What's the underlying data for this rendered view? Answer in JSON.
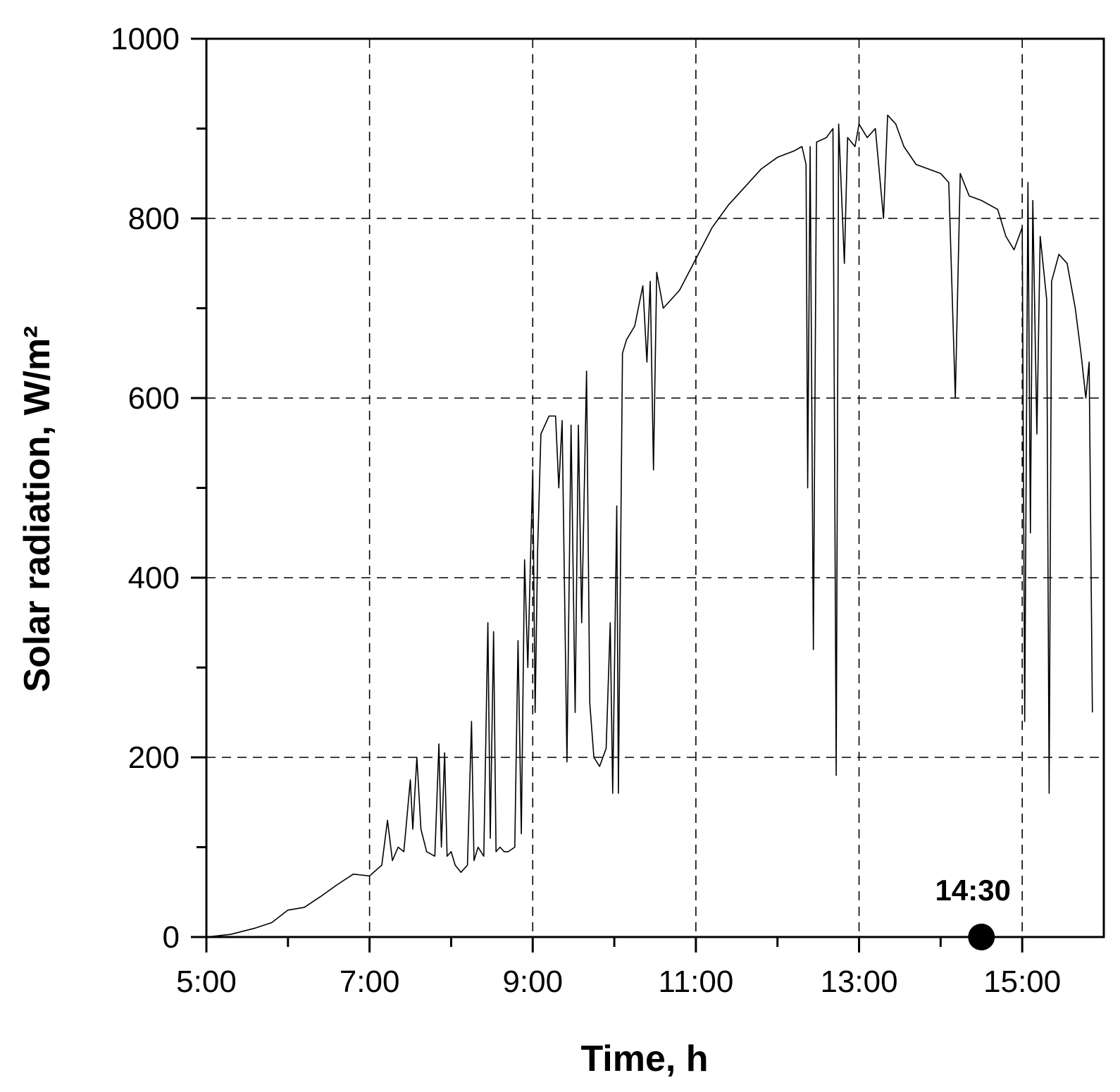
{
  "chart_data": {
    "type": "line",
    "xlabel": "Time, h",
    "ylabel": "Solar radiation, W/m²",
    "xlim": [
      5,
      16
    ],
    "ylim": [
      0,
      1000
    ],
    "x_ticks": [
      {
        "value": 5,
        "label": "5:00"
      },
      {
        "value": 7,
        "label": "7:00"
      },
      {
        "value": 9,
        "label": "9:00"
      },
      {
        "value": 11,
        "label": "11:00"
      },
      {
        "value": 13,
        "label": "13:00"
      },
      {
        "value": 15,
        "label": "15:00"
      }
    ],
    "x_minor_ticks": [
      6,
      8,
      10,
      12,
      14
    ],
    "y_ticks": [
      {
        "value": 0,
        "label": "0"
      },
      {
        "value": 200,
        "label": "200"
      },
      {
        "value": 400,
        "label": "400"
      },
      {
        "value": 600,
        "label": "600"
      },
      {
        "value": 800,
        "label": "800"
      },
      {
        "value": 1000,
        "label": "1000"
      }
    ],
    "y_minor_ticks": [
      100,
      300,
      500,
      700,
      900
    ],
    "grid": "dashed at major ticks",
    "series": [
      {
        "points": [
          [
            5.0,
            0
          ],
          [
            5.3,
            3
          ],
          [
            5.6,
            10
          ],
          [
            5.8,
            16
          ],
          [
            6.0,
            30
          ],
          [
            6.2,
            33
          ],
          [
            6.4,
            45
          ],
          [
            6.6,
            58
          ],
          [
            6.8,
            70
          ],
          [
            7.0,
            68
          ],
          [
            7.15,
            80
          ],
          [
            7.22,
            130
          ],
          [
            7.28,
            85
          ],
          [
            7.35,
            100
          ],
          [
            7.42,
            95
          ],
          [
            7.5,
            175
          ],
          [
            7.53,
            120
          ],
          [
            7.58,
            200
          ],
          [
            7.63,
            120
          ],
          [
            7.7,
            95
          ],
          [
            7.8,
            90
          ],
          [
            7.85,
            215
          ],
          [
            7.88,
            100
          ],
          [
            7.92,
            205
          ],
          [
            7.95,
            90
          ],
          [
            8.0,
            95
          ],
          [
            8.05,
            80
          ],
          [
            8.12,
            72
          ],
          [
            8.2,
            80
          ],
          [
            8.25,
            240
          ],
          [
            8.28,
            85
          ],
          [
            8.33,
            100
          ],
          [
            8.4,
            90
          ],
          [
            8.45,
            350
          ],
          [
            8.48,
            110
          ],
          [
            8.52,
            340
          ],
          [
            8.55,
            95
          ],
          [
            8.6,
            100
          ],
          [
            8.65,
            95
          ],
          [
            8.7,
            95
          ],
          [
            8.78,
            100
          ],
          [
            8.82,
            330
          ],
          [
            8.86,
            115
          ],
          [
            8.9,
            420
          ],
          [
            8.94,
            300
          ],
          [
            9.0,
            520
          ],
          [
            9.03,
            250
          ],
          [
            9.06,
            430
          ],
          [
            9.1,
            560
          ],
          [
            9.2,
            580
          ],
          [
            9.28,
            580
          ],
          [
            9.32,
            500
          ],
          [
            9.36,
            575
          ],
          [
            9.42,
            195
          ],
          [
            9.47,
            570
          ],
          [
            9.52,
            250
          ],
          [
            9.56,
            570
          ],
          [
            9.6,
            350
          ],
          [
            9.66,
            630
          ],
          [
            9.7,
            260
          ],
          [
            9.75,
            200
          ],
          [
            9.82,
            190
          ],
          [
            9.9,
            210
          ],
          [
            9.95,
            350
          ],
          [
            9.98,
            160
          ],
          [
            10.03,
            480
          ],
          [
            10.05,
            160
          ],
          [
            10.1,
            650
          ],
          [
            10.15,
            665
          ],
          [
            10.25,
            680
          ],
          [
            10.35,
            725
          ],
          [
            10.4,
            640
          ],
          [
            10.44,
            730
          ],
          [
            10.48,
            520
          ],
          [
            10.52,
            740
          ],
          [
            10.6,
            700
          ],
          [
            10.8,
            720
          ],
          [
            11.0,
            755
          ],
          [
            11.2,
            790
          ],
          [
            11.4,
            815
          ],
          [
            11.6,
            835
          ],
          [
            11.8,
            855
          ],
          [
            12.0,
            868
          ],
          [
            12.2,
            875
          ],
          [
            12.3,
            880
          ],
          [
            12.35,
            860
          ],
          [
            12.37,
            500
          ],
          [
            12.4,
            880
          ],
          [
            12.44,
            320
          ],
          [
            12.48,
            885
          ],
          [
            12.6,
            890
          ],
          [
            12.68,
            900
          ],
          [
            12.72,
            180
          ],
          [
            12.75,
            905
          ],
          [
            12.82,
            750
          ],
          [
            12.86,
            890
          ],
          [
            12.95,
            880
          ],
          [
            13.0,
            905
          ],
          [
            13.1,
            890
          ],
          [
            13.2,
            900
          ],
          [
            13.3,
            800
          ],
          [
            13.35,
            915
          ],
          [
            13.45,
            905
          ],
          [
            13.55,
            880
          ],
          [
            13.7,
            860
          ],
          [
            13.85,
            855
          ],
          [
            14.0,
            850
          ],
          [
            14.1,
            840
          ],
          [
            14.18,
            600
          ],
          [
            14.24,
            850
          ],
          [
            14.35,
            825
          ],
          [
            14.5,
            820
          ],
          [
            14.7,
            810
          ],
          [
            14.8,
            780
          ],
          [
            14.9,
            765
          ],
          [
            15.0,
            790
          ],
          [
            15.03,
            240
          ],
          [
            15.07,
            840
          ],
          [
            15.1,
            450
          ],
          [
            15.13,
            820
          ],
          [
            15.18,
            560
          ],
          [
            15.22,
            780
          ],
          [
            15.3,
            710
          ],
          [
            15.33,
            160
          ],
          [
            15.36,
            730
          ],
          [
            15.45,
            760
          ],
          [
            15.55,
            750
          ],
          [
            15.65,
            700
          ],
          [
            15.72,
            650
          ],
          [
            15.78,
            600
          ],
          [
            15.82,
            640
          ],
          [
            15.86,
            250
          ]
        ]
      }
    ],
    "annotations": [
      {
        "label": "14:30",
        "x": 14.5,
        "y": 0,
        "marker": "filled-circle"
      }
    ]
  }
}
